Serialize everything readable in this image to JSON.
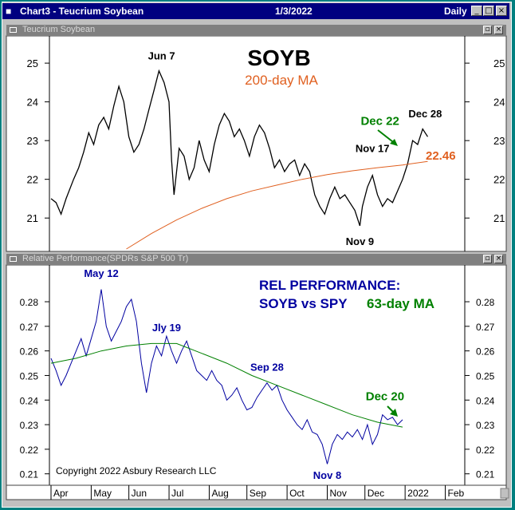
{
  "window": {
    "title": "Chart3 - Teucrium Soybean",
    "date": "1/3/2022",
    "period": "Daily",
    "controls": {
      "minimize": "_",
      "maximize": "□",
      "close": "×"
    }
  },
  "pane_controls": {
    "restore": "▫",
    "close": "×"
  },
  "chart_data": [
    {
      "type": "bar",
      "pane_title": "Teucrium Soybean",
      "title": "SOYB",
      "subtitle": "200-day MA",
      "ylim": [
        20.2,
        25.6
      ],
      "yticks": [
        "25",
        "24",
        "23",
        "22",
        "21"
      ],
      "ytick_values": [
        25,
        24,
        23,
        22,
        21
      ],
      "price_path": [
        [
          0,
          21.5
        ],
        [
          2,
          21.4
        ],
        [
          4,
          21.1
        ],
        [
          6,
          21.5
        ],
        [
          9,
          22.0
        ],
        [
          11,
          22.3
        ],
        [
          13,
          22.7
        ],
        [
          15,
          23.2
        ],
        [
          17,
          22.9
        ],
        [
          19,
          23.4
        ],
        [
          21,
          23.6
        ],
        [
          23,
          23.3
        ],
        [
          25,
          23.9
        ],
        [
          27,
          24.4
        ],
        [
          29,
          24.0
        ],
        [
          31,
          23.1
        ],
        [
          33,
          22.7
        ],
        [
          35,
          22.9
        ],
        [
          37,
          23.3
        ],
        [
          39,
          23.8
        ],
        [
          41,
          24.3
        ],
        [
          43,
          24.8
        ],
        [
          45,
          24.5
        ],
        [
          47,
          24.0
        ],
        [
          48,
          22.5
        ],
        [
          49,
          21.6
        ],
        [
          51,
          22.8
        ],
        [
          53,
          22.6
        ],
        [
          55,
          22.0
        ],
        [
          57,
          22.3
        ],
        [
          59,
          23.0
        ],
        [
          61,
          22.5
        ],
        [
          63,
          22.2
        ],
        [
          65,
          22.9
        ],
        [
          67,
          23.4
        ],
        [
          69,
          23.7
        ],
        [
          71,
          23.5
        ],
        [
          73,
          23.1
        ],
        [
          75,
          23.3
        ],
        [
          77,
          23.0
        ],
        [
          79,
          22.6
        ],
        [
          81,
          23.1
        ],
        [
          83,
          23.4
        ],
        [
          85,
          23.2
        ],
        [
          87,
          22.8
        ],
        [
          89,
          22.3
        ],
        [
          91,
          22.5
        ],
        [
          93,
          22.2
        ],
        [
          95,
          22.4
        ],
        [
          97,
          22.5
        ],
        [
          99,
          22.1
        ],
        [
          101,
          22.4
        ],
        [
          103,
          22.2
        ],
        [
          105,
          21.6
        ],
        [
          107,
          21.3
        ],
        [
          109,
          21.1
        ],
        [
          111,
          21.5
        ],
        [
          113,
          21.8
        ],
        [
          115,
          21.5
        ],
        [
          117,
          21.6
        ],
        [
          119,
          21.4
        ],
        [
          121,
          21.2
        ],
        [
          123,
          20.8
        ],
        [
          124,
          21.3
        ],
        [
          126,
          21.8
        ],
        [
          128,
          22.1
        ],
        [
          130,
          21.6
        ],
        [
          132,
          21.3
        ],
        [
          134,
          21.5
        ],
        [
          136,
          21.4
        ],
        [
          138,
          21.7
        ],
        [
          140,
          22.0
        ],
        [
          142,
          22.4
        ],
        [
          144,
          23.0
        ],
        [
          146,
          22.9
        ],
        [
          148,
          23.3
        ],
        [
          150,
          23.1
        ]
      ],
      "ma_path": [
        [
          30,
          20.2
        ],
        [
          40,
          20.6
        ],
        [
          50,
          20.95
        ],
        [
          60,
          21.25
        ],
        [
          70,
          21.5
        ],
        [
          80,
          21.7
        ],
        [
          90,
          21.85
        ],
        [
          100,
          22.0
        ],
        [
          110,
          22.12
        ],
        [
          120,
          22.22
        ],
        [
          130,
          22.3
        ],
        [
          140,
          22.37
        ],
        [
          150,
          22.46
        ]
      ],
      "ma_last": "22.46",
      "annotations": [
        {
          "text": "Jun 7",
          "x": 44,
          "y": 25.1,
          "color": "#000000"
        },
        {
          "text": "Nov 17",
          "x": 128,
          "y": 22.7,
          "color": "#000000"
        },
        {
          "text": "Nov 9",
          "x": 123,
          "y": 20.3,
          "color": "#000000"
        },
        {
          "text": "Dec 28",
          "x": 149,
          "y": 23.6,
          "color": "#000000"
        },
        {
          "text": "Dec 22",
          "x": 131,
          "y": 23.4,
          "color": "#008000"
        }
      ],
      "colors": {
        "price": "#000000",
        "ma": "#e06020",
        "title": "#000000",
        "subtitle": "#e06020",
        "ma_label": "#e06020"
      }
    },
    {
      "type": "line",
      "pane_title": "Relative Performance(SPDRs S&P 500 Tr)",
      "title_lines": [
        "REL PERFORMANCE:",
        "SOYB vs SPY"
      ],
      "ma_label": "63-day MA",
      "ylim": [
        0.206,
        0.293
      ],
      "yticks": [
        "0.28",
        "0.27",
        "0.26",
        "0.25",
        "0.24",
        "0.23",
        "0.22",
        "0.21"
      ],
      "ytick_values": [
        0.28,
        0.27,
        0.26,
        0.25,
        0.24,
        0.23,
        0.22,
        0.21
      ],
      "x_labels": [
        "Apr",
        "May",
        "Jun",
        "Jul",
        "Aug",
        "Sep",
        "Oct",
        "Nov",
        "Dec",
        "2022",
        "Feb"
      ],
      "x_label_pos": [
        0,
        16,
        31,
        47,
        63,
        78,
        94,
        110,
        125,
        141,
        157
      ],
      "rel_path": [
        [
          0,
          0.257
        ],
        [
          2,
          0.252
        ],
        [
          4,
          0.246
        ],
        [
          6,
          0.25
        ],
        [
          8,
          0.255
        ],
        [
          10,
          0.26
        ],
        [
          12,
          0.265
        ],
        [
          14,
          0.258
        ],
        [
          16,
          0.265
        ],
        [
          18,
          0.272
        ],
        [
          20,
          0.285
        ],
        [
          22,
          0.27
        ],
        [
          24,
          0.264
        ],
        [
          26,
          0.268
        ],
        [
          28,
          0.272
        ],
        [
          30,
          0.278
        ],
        [
          32,
          0.281
        ],
        [
          34,
          0.272
        ],
        [
          36,
          0.255
        ],
        [
          38,
          0.243
        ],
        [
          40,
          0.255
        ],
        [
          42,
          0.262
        ],
        [
          44,
          0.258
        ],
        [
          46,
          0.266
        ],
        [
          48,
          0.26
        ],
        [
          50,
          0.255
        ],
        [
          52,
          0.26
        ],
        [
          54,
          0.264
        ],
        [
          56,
          0.258
        ],
        [
          58,
          0.252
        ],
        [
          60,
          0.25
        ],
        [
          62,
          0.248
        ],
        [
          64,
          0.252
        ],
        [
          66,
          0.248
        ],
        [
          68,
          0.246
        ],
        [
          70,
          0.24
        ],
        [
          72,
          0.242
        ],
        [
          74,
          0.245
        ],
        [
          76,
          0.24
        ],
        [
          78,
          0.236
        ],
        [
          80,
          0.237
        ],
        [
          82,
          0.241
        ],
        [
          84,
          0.244
        ],
        [
          86,
          0.247
        ],
        [
          88,
          0.244
        ],
        [
          90,
          0.246
        ],
        [
          92,
          0.24
        ],
        [
          94,
          0.236
        ],
        [
          96,
          0.233
        ],
        [
          98,
          0.23
        ],
        [
          100,
          0.228
        ],
        [
          102,
          0.232
        ],
        [
          104,
          0.227
        ],
        [
          106,
          0.226
        ],
        [
          108,
          0.222
        ],
        [
          110,
          0.214
        ],
        [
          112,
          0.222
        ],
        [
          114,
          0.226
        ],
        [
          116,
          0.224
        ],
        [
          118,
          0.227
        ],
        [
          120,
          0.225
        ],
        [
          122,
          0.228
        ],
        [
          124,
          0.224
        ],
        [
          126,
          0.23
        ],
        [
          128,
          0.222
        ],
        [
          130,
          0.226
        ],
        [
          132,
          0.234
        ],
        [
          134,
          0.232
        ],
        [
          136,
          0.233
        ],
        [
          138,
          0.23
        ],
        [
          140,
          0.232
        ]
      ],
      "ma_path": [
        [
          0,
          0.255
        ],
        [
          10,
          0.257
        ],
        [
          20,
          0.26
        ],
        [
          30,
          0.262
        ],
        [
          40,
          0.263
        ],
        [
          50,
          0.263
        ],
        [
          60,
          0.259
        ],
        [
          70,
          0.255
        ],
        [
          80,
          0.25
        ],
        [
          90,
          0.246
        ],
        [
          100,
          0.242
        ],
        [
          110,
          0.238
        ],
        [
          120,
          0.234
        ],
        [
          130,
          0.231
        ],
        [
          140,
          0.229
        ]
      ],
      "annotations": [
        {
          "text": "May 12",
          "x": 20,
          "y": 0.29,
          "color": "#0000a0"
        },
        {
          "text": "Jly 19",
          "x": 46,
          "y": 0.268,
          "color": "#0000a0"
        },
        {
          "text": "Sep 28",
          "x": 86,
          "y": 0.252,
          "color": "#0000a0"
        },
        {
          "text": "Nov 8",
          "x": 110,
          "y": 0.208,
          "color": "#0000a0"
        },
        {
          "text": "Dec 20",
          "x": 133,
          "y": 0.24,
          "color": "#008000"
        }
      ],
      "copyright": "Copyright 2022 Asbury Research LLC",
      "colors": {
        "rel": "#0000a0",
        "ma": "#008000",
        "title": "#0000a0",
        "ma_label": "#008000"
      }
    }
  ]
}
